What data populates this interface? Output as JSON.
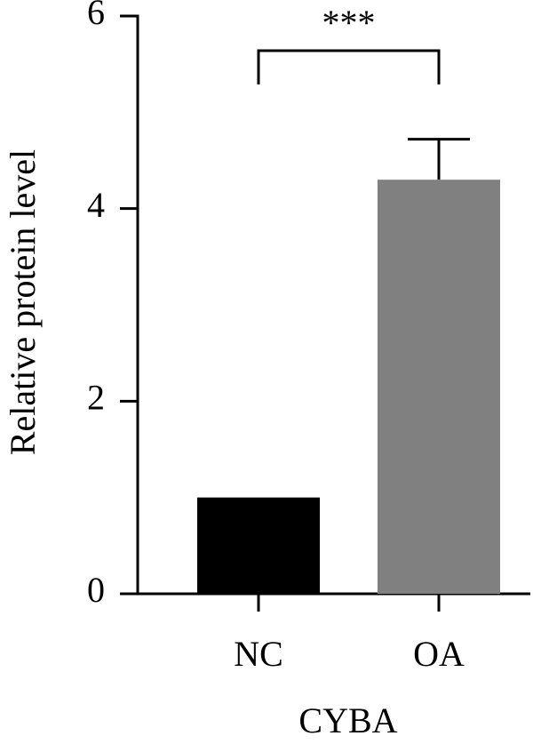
{
  "chart_data": {
    "type": "bar",
    "y_label": "Relative protein level",
    "x_label": "CYBA",
    "categories": [
      "NC",
      "OA"
    ],
    "values": [
      1.0,
      4.3
    ],
    "errors": [
      null,
      0.42
    ],
    "colors": [
      "#000000",
      "#808080"
    ],
    "annotation": "***",
    "ylim": [
      0,
      6
    ],
    "yticks": [
      0,
      2,
      4,
      6
    ]
  }
}
